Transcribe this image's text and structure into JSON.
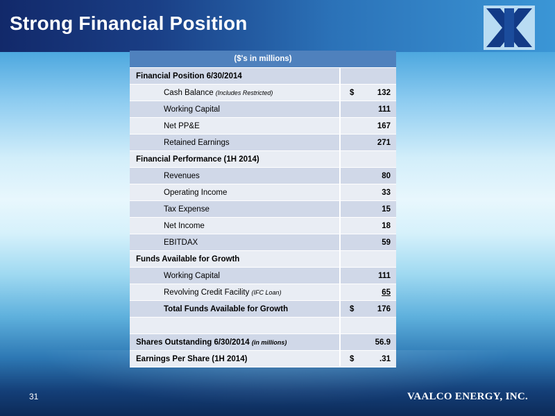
{
  "slide": {
    "title": "Strong Financial Position",
    "page_number": "31",
    "brand": "VAALCO ENERGY, INC."
  },
  "table": {
    "caption": "($'s in millions)",
    "rows": [
      {
        "label": "Financial Position  6/30/2014",
        "kind": "section"
      },
      {
        "label": "Cash Balance ",
        "note": "(Includes Restricted)",
        "currency": "$",
        "value": "132",
        "kind": "item"
      },
      {
        "label": "Working Capital",
        "value": "111",
        "kind": "item"
      },
      {
        "label": "Net PP&E",
        "value": "167",
        "kind": "item"
      },
      {
        "label": "Retained Earnings",
        "value": "271",
        "kind": "item"
      },
      {
        "label": "Financial Performance (1H 2014)",
        "kind": "section"
      },
      {
        "label": "Revenues",
        "value": "80",
        "kind": "item"
      },
      {
        "label": "Operating Income",
        "value": "33",
        "kind": "item"
      },
      {
        "label": "Tax Expense",
        "value": "15",
        "kind": "item"
      },
      {
        "label": "Net Income",
        "value": "18",
        "kind": "item"
      },
      {
        "label": "EBITDAX",
        "value": "59",
        "kind": "item"
      },
      {
        "label": "Funds Available for Growth",
        "kind": "section"
      },
      {
        "label": "Working Capital",
        "value": "111",
        "kind": "item"
      },
      {
        "label": "Revolving Credit Facility ",
        "note": "(IFC Loan)",
        "value": "65",
        "kind": "item",
        "underline": true
      },
      {
        "label": "Total Funds Available for Growth",
        "currency": "$",
        "value": "176",
        "kind": "item",
        "bold": true
      },
      {
        "label": "",
        "kind": "blank"
      },
      {
        "label": "Shares Outstanding  6/30/2014",
        "note": "(in millions)",
        "value": "56.9",
        "kind": "section"
      },
      {
        "label": "Earnings Per Share (1H 2014)",
        "currency": "$",
        "value": ".31",
        "kind": "section"
      }
    ]
  },
  "colors": {
    "header_accent": "#4f81bd",
    "row_dark": "#d0d8e8",
    "row_light": "#e9edf4",
    "title_bar": "#1a3f86"
  },
  "icons": {
    "logo": "vaalco-logo-icon"
  }
}
